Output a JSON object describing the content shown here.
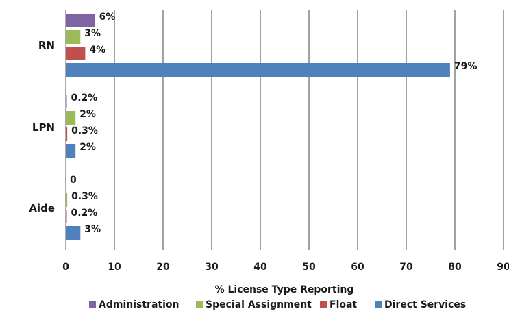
{
  "chart_data": {
    "type": "bar",
    "orientation": "horizontal",
    "categories": [
      "RN",
      "LPN",
      "Aide"
    ],
    "series": [
      {
        "name": "Administration",
        "color": "#8064a2",
        "values": [
          6,
          0.2,
          0
        ],
        "labels": [
          "6%",
          "0.2%",
          "0"
        ]
      },
      {
        "name": "Special Assignment",
        "color": "#9bbb59",
        "values": [
          3,
          2,
          0.3
        ],
        "labels": [
          "3%",
          "2%",
          "0.3%"
        ]
      },
      {
        "name": "Float",
        "color": "#c0504d",
        "values": [
          4,
          0.3,
          0.2
        ],
        "labels": [
          "4%",
          "0.3%",
          "0.2%"
        ]
      },
      {
        "name": "Direct Services",
        "color": "#4f81bd",
        "values": [
          79,
          2,
          3
        ],
        "labels": [
          "79%",
          "2%",
          "3%"
        ]
      }
    ],
    "xlabel": "% License Type Reporting",
    "ylabel": "",
    "xlim": [
      0,
      90
    ],
    "xticks": [
      "0",
      "10",
      "20",
      "30",
      "40",
      "50",
      "60",
      "70",
      "80",
      "90"
    ],
    "grid": "vertical",
    "legend_position": "bottom"
  }
}
